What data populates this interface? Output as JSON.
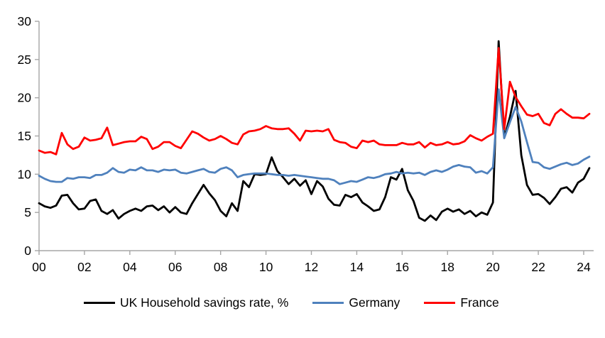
{
  "chart_data": {
    "type": "line",
    "title": "",
    "xlabel": "",
    "ylabel": "",
    "x_unit": "quarterly, year fractions",
    "x_start": 2000.0,
    "x_step": 0.25,
    "xlim": [
      2000,
      2024.5
    ],
    "ylim": [
      0,
      30
    ],
    "grid": false,
    "legend_position": "bottom",
    "background": "#ffffff",
    "axis_color": "#a6a6a6",
    "text_color": "#000000",
    "y_ticks": [
      0,
      5,
      10,
      15,
      20,
      25,
      30
    ],
    "x_tick_years": [
      2000,
      2002,
      2004,
      2006,
      2008,
      2010,
      2012,
      2014,
      2016,
      2018,
      2020,
      2022,
      2024
    ],
    "x_tick_labels": [
      "00",
      "02",
      "04",
      "06",
      "08",
      "10",
      "12",
      "14",
      "16",
      "18",
      "20",
      "22",
      "24"
    ],
    "series": [
      {
        "name": "UK Household savings rate, %",
        "color": "#000000",
        "values": [
          6.2,
          5.8,
          5.6,
          5.9,
          7.2,
          7.3,
          6.2,
          5.4,
          5.5,
          6.5,
          6.7,
          5.2,
          4.8,
          5.3,
          4.2,
          4.8,
          5.2,
          5.5,
          5.2,
          5.8,
          5.9,
          5.3,
          5.8,
          5.0,
          5.7,
          5.0,
          4.8,
          6.2,
          7.4,
          8.6,
          7.5,
          6.6,
          5.2,
          4.5,
          6.2,
          5.2,
          9.1,
          8.3,
          10.0,
          9.9,
          10.0,
          12.2,
          10.4,
          9.6,
          8.7,
          9.4,
          8.5,
          9.2,
          7.4,
          9.1,
          8.4,
          6.8,
          6.0,
          5.9,
          7.3,
          7.0,
          7.4,
          6.3,
          5.8,
          5.2,
          5.4,
          7.0,
          9.6,
          9.3,
          10.7,
          7.9,
          6.5,
          4.3,
          3.9,
          4.6,
          4.0,
          5.1,
          5.5,
          5.1,
          5.4,
          4.8,
          5.2,
          4.5,
          5.0,
          4.7,
          6.3,
          27.4,
          14.8,
          17.5,
          20.9,
          12.5,
          8.6,
          7.3,
          7.4,
          6.9,
          6.1,
          7.0,
          8.1,
          8.3,
          7.6,
          8.9,
          9.4,
          10.8
        ]
      },
      {
        "name": "Germany",
        "color": "#4f81bd",
        "values": [
          9.8,
          9.4,
          9.1,
          9.0,
          9.0,
          9.5,
          9.4,
          9.6,
          9.6,
          9.5,
          9.9,
          9.9,
          10.2,
          10.8,
          10.3,
          10.2,
          10.6,
          10.5,
          10.9,
          10.5,
          10.5,
          10.3,
          10.6,
          10.5,
          10.6,
          10.2,
          10.1,
          10.3,
          10.5,
          10.7,
          10.3,
          10.2,
          10.7,
          10.9,
          10.5,
          9.6,
          9.9,
          10.0,
          10.1,
          10.1,
          10.1,
          10.0,
          9.9,
          9.9,
          9.8,
          9.9,
          9.8,
          9.7,
          9.6,
          9.5,
          9.4,
          9.4,
          9.2,
          8.7,
          8.9,
          9.1,
          9.0,
          9.3,
          9.6,
          9.5,
          9.7,
          10.0,
          10.1,
          10.3,
          10.1,
          10.2,
          10.1,
          10.2,
          9.9,
          10.3,
          10.5,
          10.3,
          10.6,
          11.0,
          11.2,
          11.0,
          10.9,
          10.2,
          10.4,
          10.1,
          10.9,
          21.1,
          14.7,
          16.8,
          18.8,
          16.9,
          14.2,
          11.6,
          11.5,
          10.9,
          10.7,
          11.0,
          11.3,
          11.5,
          11.2,
          11.4,
          11.9,
          12.3
        ]
      },
      {
        "name": "France",
        "color": "#ff0000",
        "values": [
          13.1,
          12.8,
          12.9,
          12.6,
          15.4,
          13.9,
          13.3,
          13.6,
          14.8,
          14.4,
          14.5,
          14.7,
          16.1,
          13.8,
          14.0,
          14.2,
          14.3,
          14.3,
          14.9,
          14.6,
          13.3,
          13.6,
          14.2,
          14.2,
          13.7,
          13.4,
          14.5,
          15.6,
          15.3,
          14.8,
          14.4,
          14.6,
          15.0,
          14.6,
          14.1,
          13.9,
          15.2,
          15.6,
          15.7,
          15.9,
          16.3,
          16.0,
          15.9,
          15.9,
          16.0,
          15.3,
          14.4,
          15.7,
          15.6,
          15.7,
          15.6,
          15.9,
          14.5,
          14.2,
          14.1,
          13.6,
          13.4,
          14.4,
          14.2,
          14.4,
          13.9,
          13.8,
          13.8,
          13.8,
          14.1,
          13.9,
          13.9,
          14.2,
          13.5,
          14.1,
          13.8,
          13.9,
          14.2,
          13.9,
          14.0,
          14.3,
          15.1,
          14.7,
          14.4,
          14.9,
          15.3,
          26.5,
          15.9,
          22.1,
          20.1,
          18.9,
          17.8,
          17.6,
          17.9,
          16.7,
          16.4,
          17.9,
          18.5,
          17.9,
          17.4,
          17.4,
          17.3,
          17.9
        ]
      }
    ]
  }
}
